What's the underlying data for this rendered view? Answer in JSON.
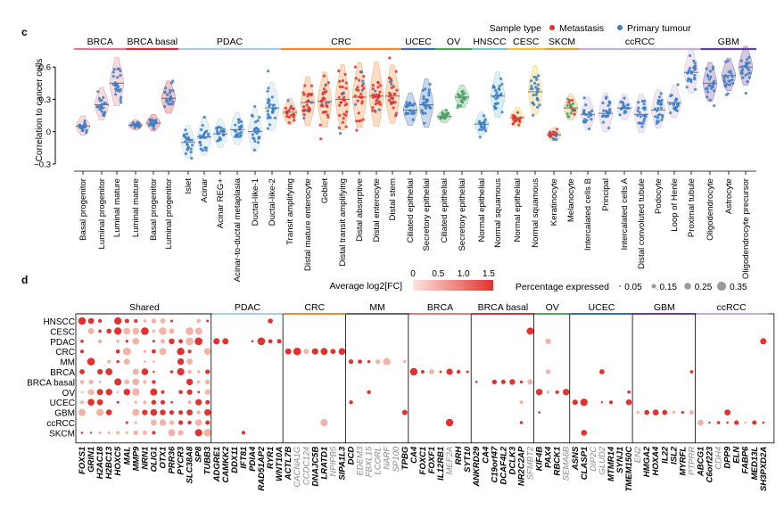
{
  "panel_c": {
    "label": "c",
    "ylabel": "Correlation to cancer cells",
    "yticks": [
      "0.6",
      "0.3",
      "0",
      "−0.3"
    ],
    "legend_title": "Sample type",
    "legend": [
      {
        "label": "Metastasis",
        "color": "#e0322e"
      },
      {
        "label": "Primary tumour",
        "color": "#3b7ec4"
      }
    ],
    "groups": [
      {
        "name": "BRCA",
        "color": "#e07a84"
      },
      {
        "name": "BRCA basal",
        "color": "#d6303c"
      },
      {
        "name": "PDAC",
        "color": "#a9cce0"
      },
      {
        "name": "CRC",
        "color": "#ef8a2e"
      },
      {
        "name": "UCEC",
        "color": "#3b6fb0"
      },
      {
        "name": "OV",
        "color": "#4da857"
      },
      {
        "name": "HNSCC",
        "color": "#7bc4d6"
      },
      {
        "name": "CESC",
        "color": "#f0c43b"
      },
      {
        "name": "SKCM",
        "color": "#d4a640"
      },
      {
        "name": "ccRCC",
        "color": "#c7aed8"
      },
      {
        "name": "GBM",
        "color": "#6b3f99"
      }
    ]
  },
  "chart_data": [
    {
      "type": "violin",
      "title": "",
      "ylabel": "Correlation to cancer cells",
      "ylim": [
        -0.35,
        0.75
      ],
      "categories": [
        "Basal progenitor",
        "Luminal progenitor",
        "Luminal mature",
        "Luminal mature",
        "Basal progenitor",
        "Luminal progenitor",
        "Islet",
        "Acinar",
        "Acinar REG+",
        "Acinar-to-ductal metaplasia",
        "Ductal-like-1",
        "Ductal-like-2",
        "Transit amplifying",
        "Distal mature enterocyte",
        "Goblet",
        "Distal transit amplifying",
        "Distal absorptive",
        "Distal enterocyte",
        "Distal stem",
        "Ciliated epithelial",
        "Secretory epithelial",
        "Ciliated epithelial",
        "Secretory epithelial",
        "Normal epithelial",
        "Normal squamous",
        "Normal epithelial",
        "Normal squamous",
        "Keratinocyte",
        "Melanocyte",
        "Intercalated cells B",
        "Principal",
        "Intercalated cells A",
        "Distal convoluted tubule",
        "Podocyte",
        "Loop of Henle",
        "Proximal tubule",
        "Oligodendrocyte",
        "Astrocyte",
        "Oligodendrocyte precursor"
      ],
      "category_group": [
        "BRCA",
        "BRCA",
        "BRCA",
        "BRCA basal",
        "BRCA basal",
        "BRCA basal",
        "PDAC",
        "PDAC",
        "PDAC",
        "PDAC",
        "PDAC",
        "PDAC",
        "CRC",
        "CRC",
        "CRC",
        "CRC",
        "CRC",
        "CRC",
        "CRC",
        "UCEC",
        "UCEC",
        "OV",
        "OV",
        "HNSCC",
        "HNSCC",
        "CESC",
        "CESC",
        "SKCM",
        "SKCM",
        "ccRCC",
        "ccRCC",
        "ccRCC",
        "ccRCC",
        "ccRCC",
        "ccRCC",
        "ccRCC",
        "GBM",
        "GBM",
        "GBM"
      ],
      "medians": [
        0.05,
        0.25,
        0.45,
        0.06,
        0.08,
        0.31,
        -0.1,
        -0.05,
        -0.02,
        0.02,
        0.0,
        0.22,
        0.18,
        0.27,
        0.28,
        0.3,
        0.32,
        0.33,
        0.33,
        0.2,
        0.25,
        0.14,
        0.32,
        0.07,
        0.33,
        0.13,
        0.37,
        -0.03,
        0.22,
        0.16,
        0.17,
        0.22,
        0.16,
        0.2,
        0.27,
        0.55,
        0.45,
        0.52,
        0.6
      ],
      "spread": [
        0.06,
        0.1,
        0.15,
        0.03,
        0.05,
        0.1,
        0.1,
        0.12,
        0.09,
        0.1,
        0.13,
        0.15,
        0.08,
        0.15,
        0.17,
        0.2,
        0.2,
        0.2,
        0.18,
        0.1,
        0.15,
        0.04,
        0.07,
        0.07,
        0.14,
        0.06,
        0.15,
        0.04,
        0.08,
        0.1,
        0.12,
        0.08,
        0.12,
        0.12,
        0.1,
        0.14,
        0.12,
        0.1,
        0.12
      ],
      "point_color": [
        "primary",
        "primary",
        "primary",
        "primary",
        "primary",
        "primary",
        "primary",
        "primary",
        "primary",
        "primary",
        "primary",
        "primary",
        "metastasis",
        "metastasis",
        "metastasis",
        "metastasis",
        "metastasis",
        "metastasis",
        "metastasis",
        "primary",
        "primary",
        "primary",
        "primary",
        "primary",
        "primary",
        "metastasis",
        "primary",
        "metastasis",
        "mixed",
        "primary",
        "primary",
        "primary",
        "primary",
        "primary",
        "primary",
        "primary",
        "primary",
        "primary",
        "primary"
      ]
    },
    {
      "type": "dotplot",
      "title": "",
      "color_legend_title": "Average log2[FC]",
      "color_ticks": [
        0,
        0.5,
        1.0,
        1.5
      ],
      "size_legend_title": "Percentage expressed",
      "size_ticks": [
        0.05,
        0.15,
        0.25,
        0.35
      ],
      "rows": [
        "HNSCC",
        "CESC",
        "PDAC",
        "CRC",
        "MM",
        "BRCA",
        "BRCA basal",
        "OV",
        "UCEC",
        "GBM",
        "ccRCC",
        "SKCM"
      ],
      "blocks": [
        {
          "name": "Shared",
          "color": "#888888",
          "genes": [
            "FOXS1",
            "GRIN1",
            "H2AC18",
            "H2BC13",
            "HOXC5",
            "MAL",
            "MMP9",
            "NRN1",
            "OLIG1",
            "OTX1",
            "PRR36",
            "PYCR3",
            "SLC38A8",
            "SP8",
            "TUBB3"
          ],
          "italic_grey": []
        },
        {
          "name": "PDAC",
          "color": "#a9cce0",
          "genes": [
            "ADGRE1",
            "CAMKK2",
            "DDX11",
            "IFT81",
            "PDIA4",
            "RAD51AP2",
            "RYR1",
            "WNT10A"
          ],
          "italic_grey": []
        },
        {
          "name": "CRC",
          "color": "#ef8a2e",
          "genes": [
            "ACTL7B",
            "CACNA1G",
            "CCDC124",
            "DNAJC5B",
            "LRATD1",
            "NPIPB5",
            "SIPA1L3"
          ],
          "italic_grey": [
            "CACNA1G",
            "CCDC124",
            "NPIPB5"
          ]
        },
        {
          "name": "MM",
          "color": "#666666",
          "genes": [
            "DCD",
            "EDEM3",
            "FBXL15",
            "LCORL",
            "NARF",
            "SP100",
            "TPBG"
          ],
          "italic_grey": [
            "EDEM3",
            "FBXL15",
            "LCORL",
            "NARF",
            "SP100"
          ]
        },
        {
          "name": "BRCA",
          "color": "#e07a84",
          "genes": [
            "CA4",
            "FOXC1",
            "FOXF1",
            "IL12RB1",
            "MEF2A",
            "RRH",
            "SYT10"
          ],
          "italic_grey": [
            "MEF2A"
          ]
        },
        {
          "name": "BRCA basal",
          "color": "#d6303c",
          "genes": [
            "ANKRD29",
            "CA4",
            "C19orf47",
            "DCAF4L2",
            "DCLK3",
            "NR2C2AP",
            "SFMBT2"
          ],
          "italic_grey": [
            "SFMBT2"
          ]
        },
        {
          "name": "OV",
          "color": "#4da857",
          "genes": [
            "KIF4B",
            "PAX4",
            "RBCK1",
            "SEMA6B"
          ],
          "italic_grey": [
            "SEMA6B"
          ]
        },
        {
          "name": "UCEC",
          "color": "#3b6fb0",
          "genes": [
            "ASNS",
            "CLASP1",
            "DIP2C",
            "GLUD2",
            "MTMR14",
            "SYNJ1",
            "TMEM150C"
          ],
          "italic_grey": [
            "DIP2C",
            "GLUD2"
          ]
        },
        {
          "name": "GBM",
          "color": "#6b3f99",
          "genes": [
            "EN2",
            "HMGA2",
            "HOXA4",
            "IL22",
            "ISL2",
            "MYRFL",
            "PTPRR"
          ],
          "italic_grey": [
            "EN2",
            "PTPRR"
          ]
        },
        {
          "name": "ccRCC",
          "color": "#c7aed8",
          "genes": [
            "ABCG1",
            "C6orf223",
            "CDH4",
            "DPP9",
            "ELN",
            "FABP6",
            "MED13L",
            "SH3PXD2A"
          ],
          "italic_grey": [
            "CDH4"
          ]
        }
      ]
    }
  ],
  "panel_d": {
    "label": "d"
  }
}
